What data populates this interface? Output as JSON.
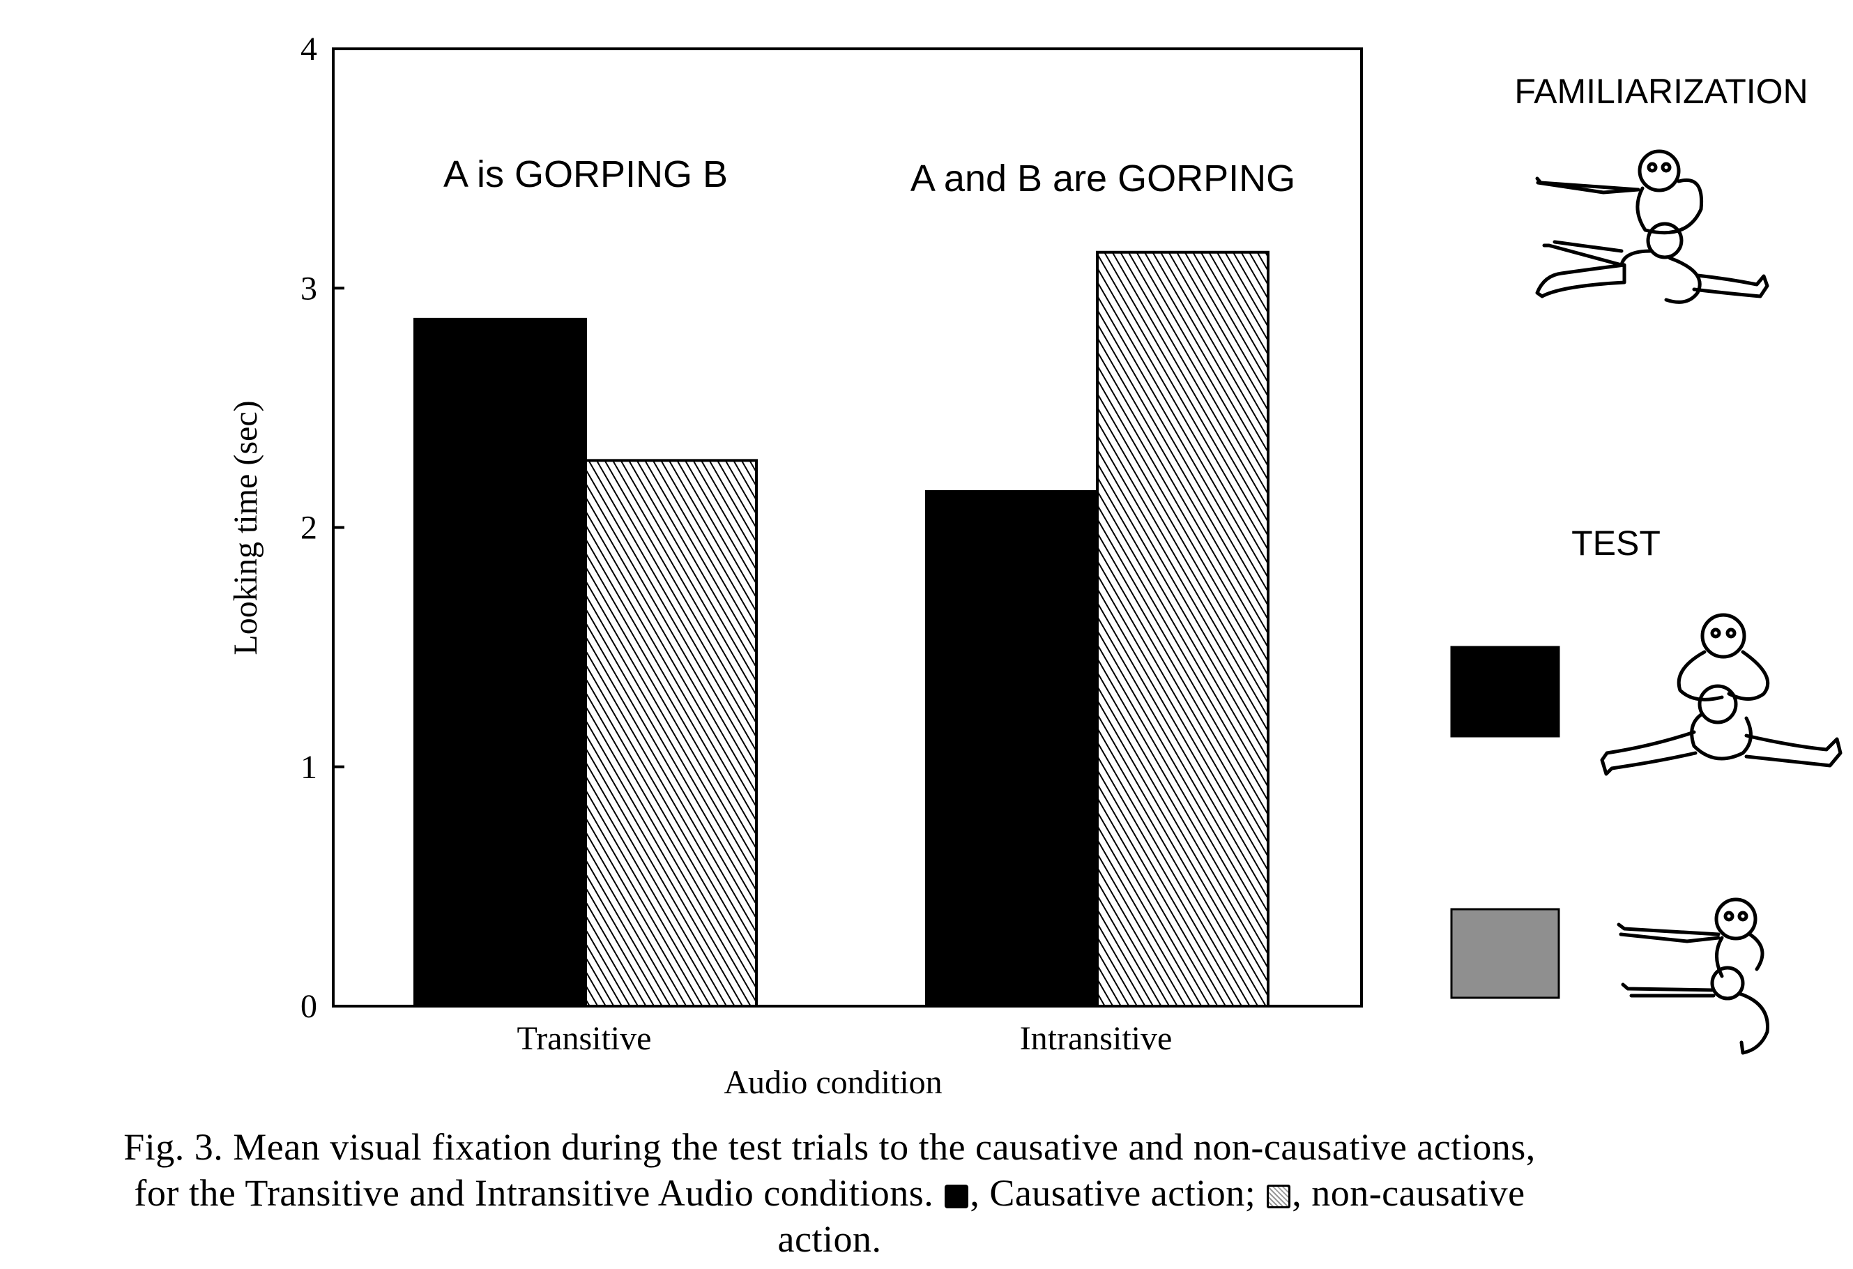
{
  "chart_data": {
    "type": "bar",
    "categories": [
      "Transitive",
      "Intransitive"
    ],
    "series": [
      {
        "name": "Causative action",
        "values": [
          2.87,
          2.15
        ],
        "fill": "solid",
        "color": "#000000"
      },
      {
        "name": "non-causative action",
        "values": [
          2.28,
          3.15
        ],
        "fill": "hatched",
        "color": "#000000"
      }
    ],
    "category_annotations": [
      "A is GORPING B",
      "A and B are GORPING"
    ],
    "xlabel": "Audio condition",
    "ylabel": "Looking time (sec)",
    "ylim": [
      0,
      4
    ],
    "yticks": [
      0,
      1,
      2,
      3,
      4
    ],
    "grid": false,
    "legend_placement": "right"
  },
  "legend_panel": {
    "familiarization_label": "FAMILIARIZATION",
    "test_label": "TEST",
    "items": [
      {
        "swatch_color": "#000000",
        "icon": "causative-figures-icon"
      },
      {
        "swatch_color": "#8f8f8f",
        "icon": "non-causative-figures-icon"
      }
    ],
    "familiarization_icon": "familiarization-figures-icon"
  },
  "caption": {
    "part1": "Fig. 3. Mean visual fixation during the test trials to the causative and non-causative actions,",
    "part2": "for the Transitive and Intransitive Audio conditions.",
    "causative_text": ", Causative action;",
    "noncausative_text": ", non-causative",
    "part3": "action."
  }
}
